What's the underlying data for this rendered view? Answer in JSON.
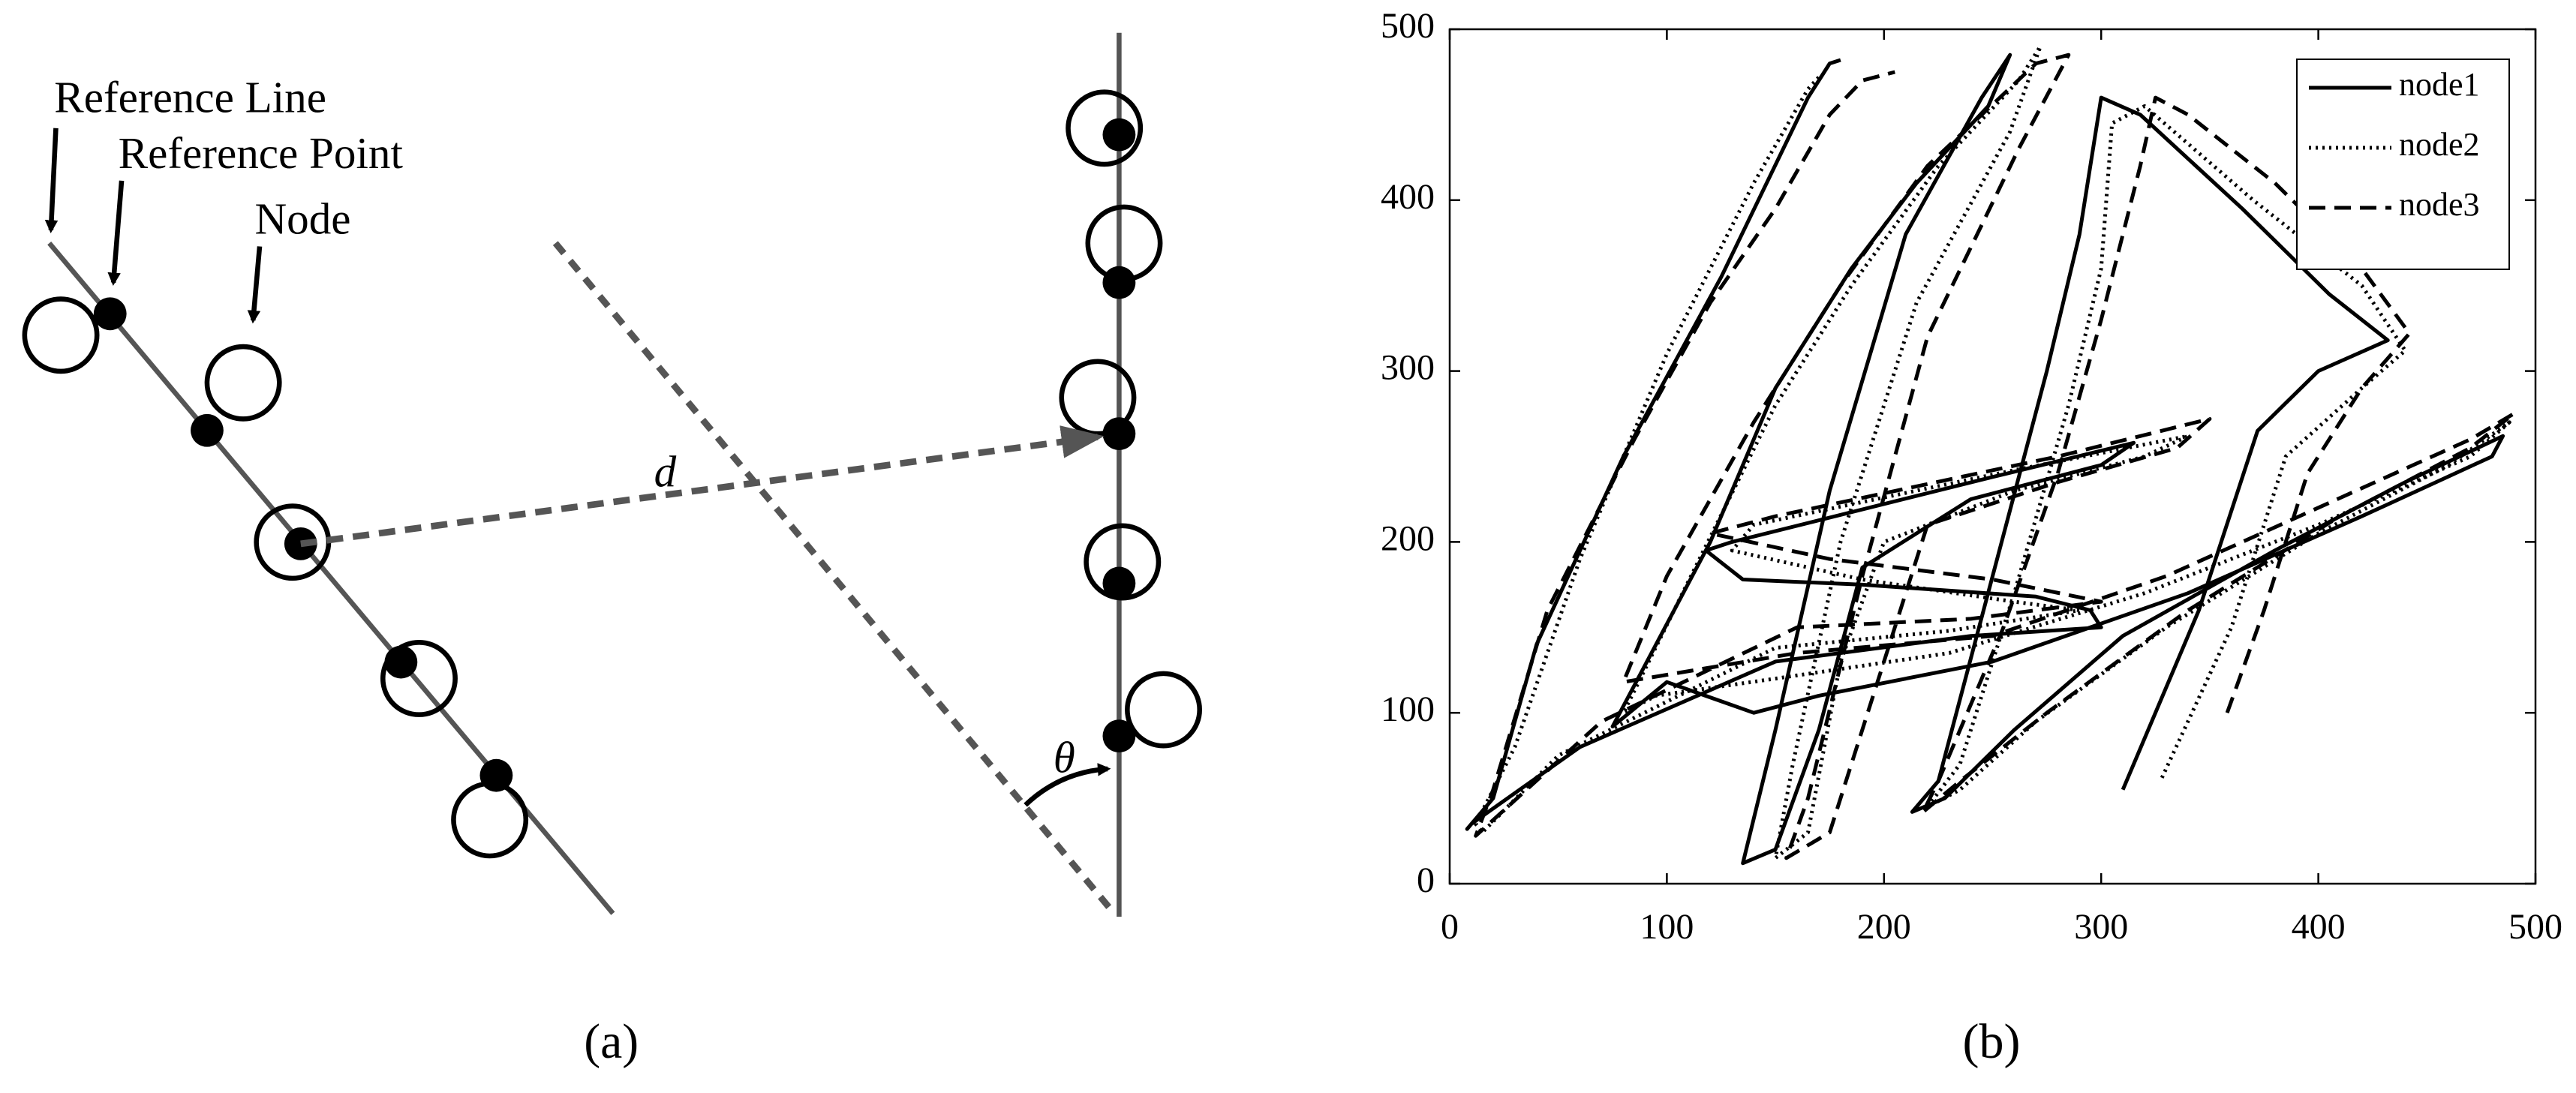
{
  "diagram": {
    "labels": {
      "reference_line": "Reference Line",
      "reference_point": "Reference Point",
      "node": "Node",
      "distance": "d",
      "angle": "θ"
    },
    "caption": "(a)"
  },
  "chart_data": {
    "type": "line",
    "caption": "(b)",
    "xlim": [
      0,
      500
    ],
    "ylim": [
      0,
      500
    ],
    "xticks": [
      0,
      100,
      200,
      300,
      400,
      500
    ],
    "yticks": [
      0,
      100,
      200,
      300,
      400,
      500
    ],
    "legend": "upper right",
    "series": [
      {
        "name": "node1",
        "color": "#000000",
        "dash": "solid",
        "x": [
          310,
          345,
          372,
          400,
          432,
          405,
          365,
          318,
          300,
          290,
          275,
          250,
          225,
          213,
          228,
          260,
          310,
          380,
          440,
          485,
          480,
          420,
          340,
          250,
          170,
          140,
          100,
          75,
          120,
          150,
          185,
          215,
          248,
          258,
          245,
          210,
          175,
          150,
          135,
          150,
          170,
          190,
          240,
          300,
          315,
          250,
          130,
          118,
          135,
          190,
          270,
          295,
          300,
          240,
          150,
          60,
          10,
          8,
          20,
          40,
          80,
          125,
          165,
          175,
          180
        ],
        "values": [
          55,
          160,
          265,
          300,
          318,
          345,
          395,
          450,
          460,
          380,
          300,
          180,
          60,
          42,
          50,
          90,
          145,
          195,
          235,
          262,
          250,
          215,
          170,
          130,
          110,
          100,
          118,
          92,
          200,
          290,
          360,
          410,
          455,
          485,
          460,
          380,
          230,
          90,
          12,
          20,
          90,
          185,
          225,
          245,
          258,
          238,
          200,
          195,
          178,
          175,
          168,
          160,
          150,
          145,
          130,
          80,
          35,
          32,
          50,
          140,
          250,
          355,
          460,
          480,
          482
        ]
      },
      {
        "name": "node2",
        "color": "#000000",
        "dash": "dotted",
        "x": [
          328,
          360,
          385,
          420,
          440,
          420,
          370,
          320,
          305,
          300,
          285,
          260,
          235,
          220,
          235,
          270,
          330,
          400,
          460,
          488,
          470,
          400,
          320,
          230,
          150,
          95,
          80,
          115,
          150,
          185,
          225,
          262,
          272,
          258,
          215,
          180,
          158,
          150,
          165,
          180,
          200,
          260,
          320,
          340,
          260,
          140,
          130,
          190,
          260,
          290,
          230,
          150,
          50,
          15,
          12,
          30,
          60,
          100,
          140,
          165,
          170
        ],
        "values": [
          62,
          150,
          250,
          290,
          312,
          350,
          400,
          455,
          445,
          360,
          280,
          170,
          70,
          45,
          55,
          95,
          150,
          205,
          245,
          270,
          250,
          210,
          170,
          135,
          120,
          110,
          100,
          190,
          280,
          350,
          420,
          470,
          490,
          440,
          340,
          200,
          70,
          15,
          30,
          130,
          200,
          230,
          250,
          262,
          242,
          210,
          195,
          178,
          165,
          160,
          148,
          138,
          75,
          30,
          35,
          80,
          190,
          310,
          410,
          465,
          472
        ]
      },
      {
        "name": "node3",
        "color": "#000000",
        "dash": "dashed",
        "x": [
          358,
          375,
          395,
          420,
          442,
          420,
          380,
          340,
          325,
          318,
          300,
          280,
          255,
          225,
          218,
          235,
          275,
          340,
          410,
          470,
          490,
          470,
          400,
          330,
          250,
          160,
          80,
          100,
          140,
          180,
          220,
          270,
          285,
          262,
          220,
          190,
          165,
          155,
          175,
          195,
          220,
          280,
          335,
          350,
          280,
          150,
          120,
          175,
          250,
          300,
          240,
          160,
          70,
          12,
          20,
          45,
          85,
          120,
          150,
          175,
          190,
          205
        ],
        "values": [
          100,
          160,
          240,
          290,
          322,
          360,
          410,
          450,
          460,
          420,
          330,
          240,
          150,
          60,
          42,
          60,
          100,
          160,
          215,
          255,
          275,
          260,
          220,
          180,
          145,
          135,
          118,
          180,
          270,
          350,
          420,
          480,
          485,
          430,
          320,
          180,
          50,
          15,
          30,
          110,
          210,
          235,
          255,
          272,
          250,
          215,
          205,
          190,
          178,
          165,
          155,
          150,
          95,
          28,
          55,
          160,
          260,
          340,
          395,
          450,
          470,
          475
        ]
      }
    ]
  }
}
